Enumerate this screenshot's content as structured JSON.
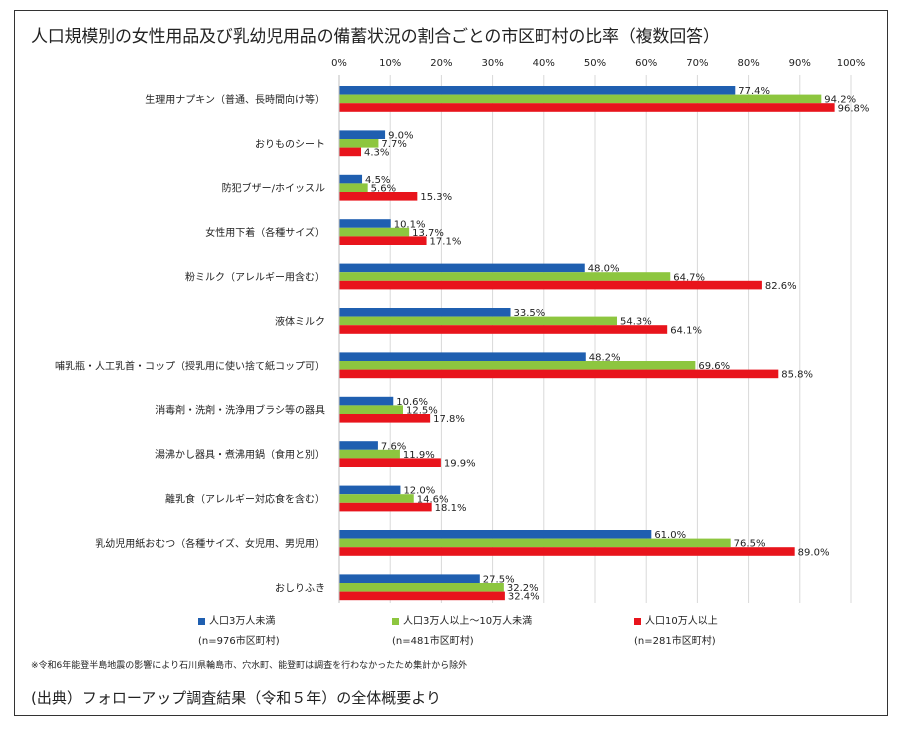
{
  "title": "人口規模別の女性用品及び乳幼児用品の備蓄状況の割合ごとの市区町村の比率（複数回答）",
  "note": "※令和6年能登半島地震の影響により石川県輪島市、穴水町、能登町は調査を行わなかったため集計から除外",
  "source": "(出典）フォローアップ調査結果（令和５年）の全体概要より",
  "legend": [
    {
      "label": "人口3万人未満",
      "n": "(n=976市区町村)",
      "color": "#1f5fb0"
    },
    {
      "label": "人口3万人以上～10万人未満",
      "n": "(n=481市区町村)",
      "color": "#8dc63f"
    },
    {
      "label": "人口10万人以上",
      "n": "(n=281市区町村)",
      "color": "#e8141c"
    }
  ],
  "chart_data": {
    "type": "bar",
    "orientation": "horizontal",
    "categories": [
      "生理用ナプキン（普通、長時間向け等）",
      "おりものシート",
      "防犯ブザー/ホイッスル",
      "女性用下着（各種サイズ）",
      "粉ミルク（アレルギー用含む）",
      "液体ミルク",
      "哺乳瓶・人工乳首・コップ（授乳用に使い捨て紙コップ可）",
      "消毒剤・洗剤・洗浄用ブラシ等の器具",
      "湯沸かし器具・煮沸用鍋（食用と別）",
      "離乳食（アレルギー対応食を含む）",
      "乳幼児用紙おむつ（各種サイズ、女児用、男児用）",
      "おしりふき"
    ],
    "series": [
      {
        "name": "人口3万人未満",
        "color": "#1f5fb0",
        "values": [
          77.4,
          9.0,
          4.5,
          10.1,
          48.0,
          33.5,
          48.2,
          10.6,
          7.6,
          12.0,
          61.0,
          27.5
        ],
        "labels": [
          "77.4%",
          "9.0%",
          "4.5%",
          "10.1%",
          "48.0%",
          "33.5%",
          "48.2%",
          "10.6%",
          "7.6%",
          "12.0%",
          "61.0%",
          "27.5%"
        ]
      },
      {
        "name": "人口3万人以上～10万人未満",
        "color": "#8dc63f",
        "values": [
          94.2,
          7.7,
          5.6,
          13.7,
          64.7,
          54.3,
          69.6,
          12.5,
          11.9,
          14.6,
          76.5,
          32.2
        ],
        "labels": [
          "94.2%",
          "7.7%",
          "5.6%",
          "13.7%",
          "64.7%",
          "54.3%",
          "69.6%",
          "12.5%",
          "11.9%",
          "14.6%",
          "76.5%",
          "32.2%"
        ]
      },
      {
        "name": "人口10万人以上",
        "color": "#e8141c",
        "values": [
          96.8,
          4.3,
          15.3,
          17.1,
          82.6,
          64.1,
          85.8,
          17.8,
          19.9,
          18.1,
          89.0,
          32.4
        ],
        "labels": [
          "96.8%",
          "4.3%",
          "15.3%",
          "17.1%",
          "82.6%",
          "64.1%",
          "85.8%",
          "17.8%",
          "19.9%",
          "18.1%",
          "89.0%",
          "32.4%"
        ]
      }
    ],
    "xlim": [
      0,
      100
    ],
    "xticks": [
      "0%",
      "10%",
      "20%",
      "30%",
      "40%",
      "50%",
      "60%",
      "70%",
      "80%",
      "90%",
      "100%"
    ],
    "grid": true,
    "legend_position": "bottom"
  }
}
